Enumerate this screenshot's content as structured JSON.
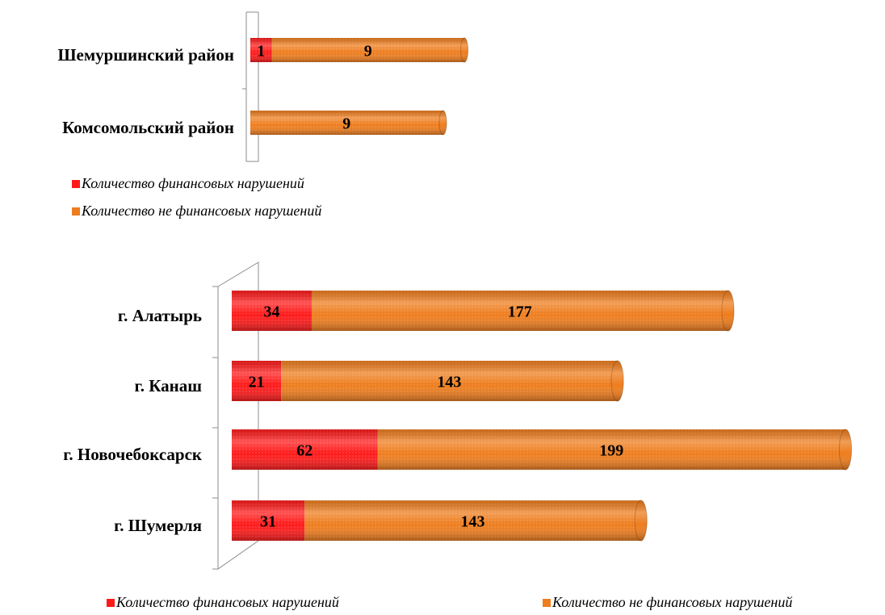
{
  "chart_data": [
    {
      "type": "bar",
      "stacked": true,
      "orientation": "horizontal",
      "legend": "bottom",
      "categories": [
        "Шемуршинский район",
        "Комсомольский район"
      ],
      "series": [
        {
          "name": "Количество финансовых нарушений",
          "color": "#ff1a1a",
          "values": [
            1,
            null
          ]
        },
        {
          "name": "Количество не финансовых нарушений",
          "color": "#ee7d1e",
          "values": [
            9,
            9
          ]
        }
      ]
    },
    {
      "type": "bar",
      "stacked": true,
      "orientation": "horizontal",
      "legend": "bottom",
      "categories": [
        "г. Алатырь",
        "г. Канаш",
        "г. Новочебоксарск",
        "г. Шумерля"
      ],
      "series": [
        {
          "name": "Количество финансовых нарушений",
          "color": "#ff1a1a",
          "values": [
            34,
            21,
            62,
            31
          ]
        },
        {
          "name": "Количество не финансовых нарушений",
          "color": "#ee7d1e",
          "values": [
            177,
            143,
            199,
            143
          ]
        }
      ]
    }
  ]
}
